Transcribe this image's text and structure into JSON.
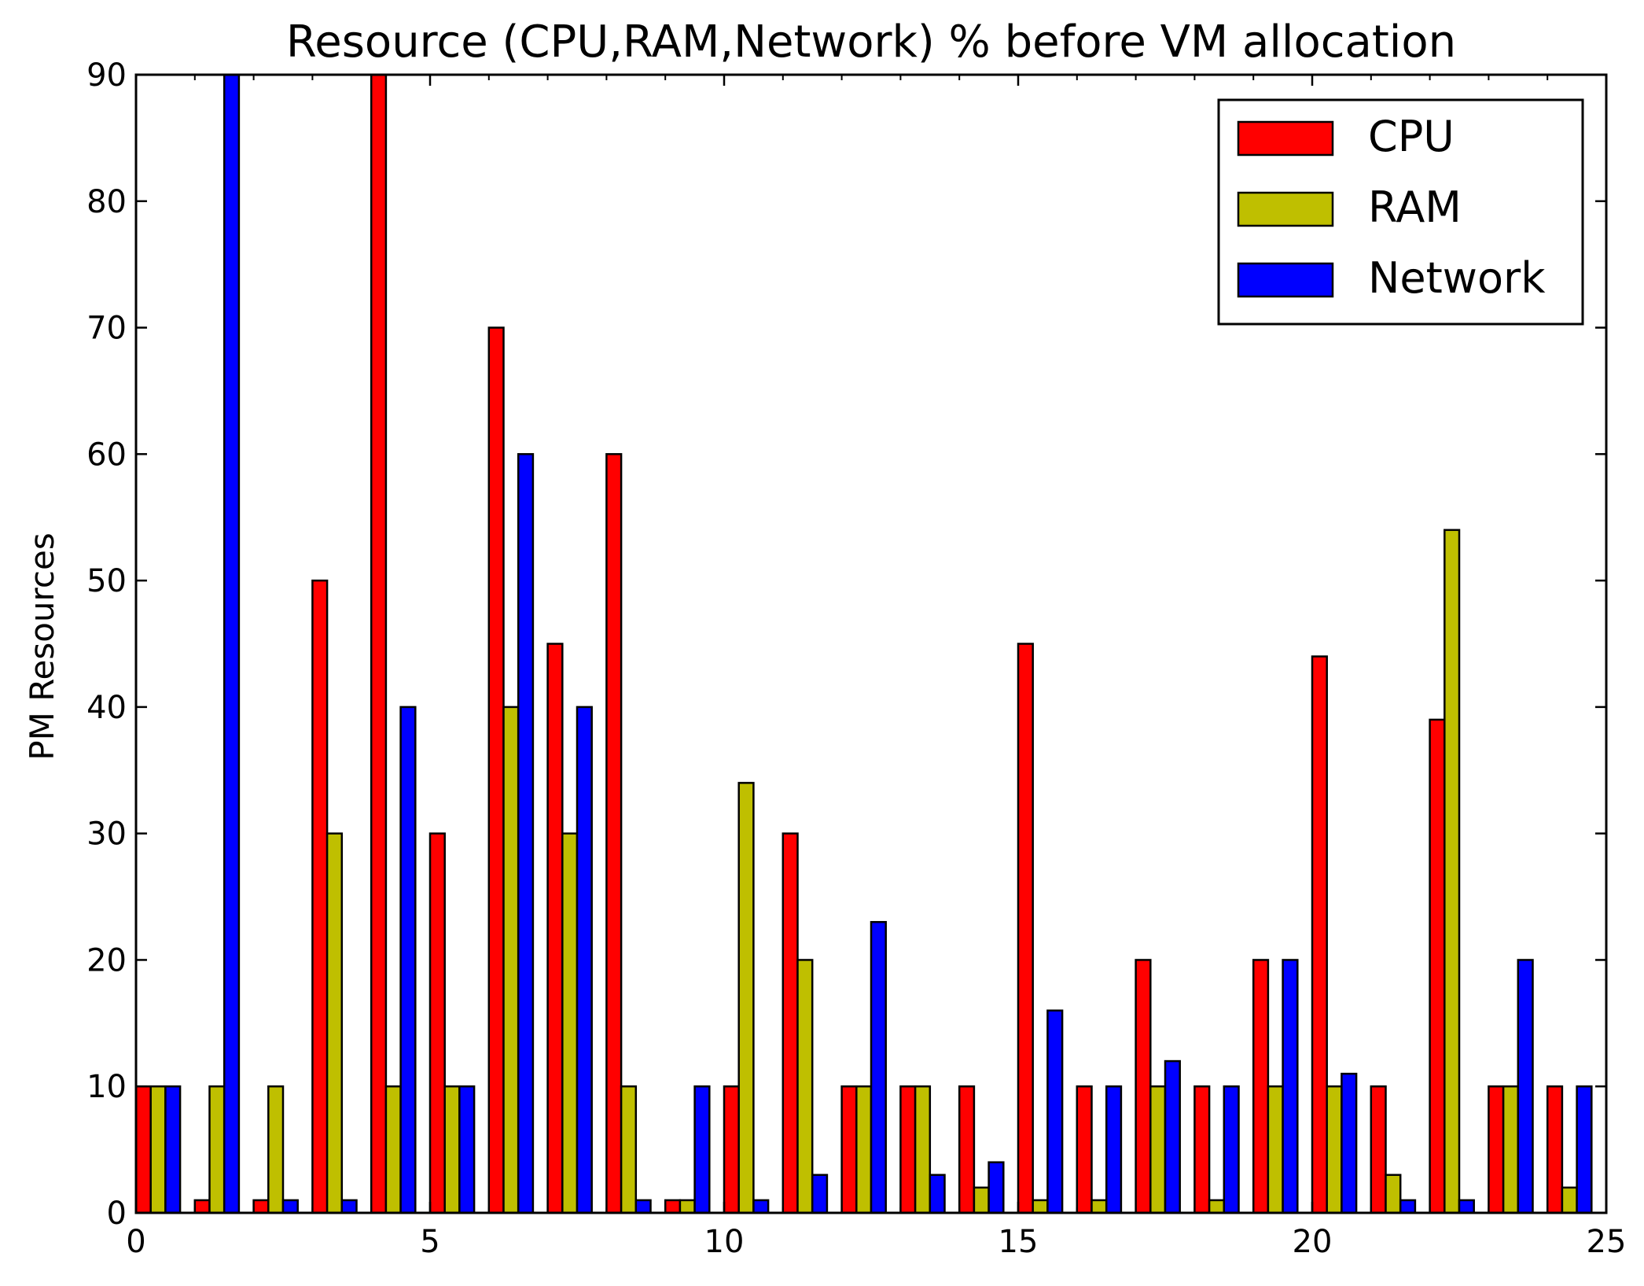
{
  "chart_data": {
    "type": "bar",
    "title": "Resource (CPU,RAM,Network) % before VM allocation",
    "xlabel": "",
    "ylabel": "PM Resources",
    "xlim": [
      0,
      25
    ],
    "ylim": [
      0,
      90
    ],
    "xticks": [
      0,
      5,
      10,
      15,
      20,
      25
    ],
    "yticks": [
      0,
      10,
      20,
      30,
      40,
      50,
      60,
      70,
      80,
      90
    ],
    "grid": false,
    "legend_position": "top-right",
    "categories": [
      0,
      1,
      2,
      3,
      4,
      5,
      6,
      7,
      8,
      9,
      10,
      11,
      12,
      13,
      14,
      15,
      16,
      17,
      18,
      19,
      20,
      21,
      22,
      23,
      24
    ],
    "series": [
      {
        "name": "CPU",
        "color": "#ff0000",
        "values": [
          10,
          1,
          1,
          50,
          90,
          30,
          70,
          45,
          60,
          1,
          10,
          30,
          10,
          10,
          10,
          45,
          10,
          20,
          10,
          20,
          44,
          10,
          39,
          10,
          10
        ]
      },
      {
        "name": "RAM",
        "color": "#bfbf00",
        "values": [
          10,
          10,
          10,
          30,
          10,
          10,
          40,
          30,
          10,
          1,
          34,
          20,
          10,
          10,
          2,
          1,
          1,
          10,
          1,
          10,
          10,
          3,
          54,
          10,
          2
        ]
      },
      {
        "name": "Network",
        "color": "#0000ff",
        "values": [
          10,
          90,
          1,
          1,
          40,
          10,
          60,
          40,
          1,
          10,
          1,
          3,
          23,
          3,
          4,
          16,
          10,
          12,
          10,
          20,
          11,
          1,
          1,
          20,
          10
        ]
      }
    ]
  }
}
